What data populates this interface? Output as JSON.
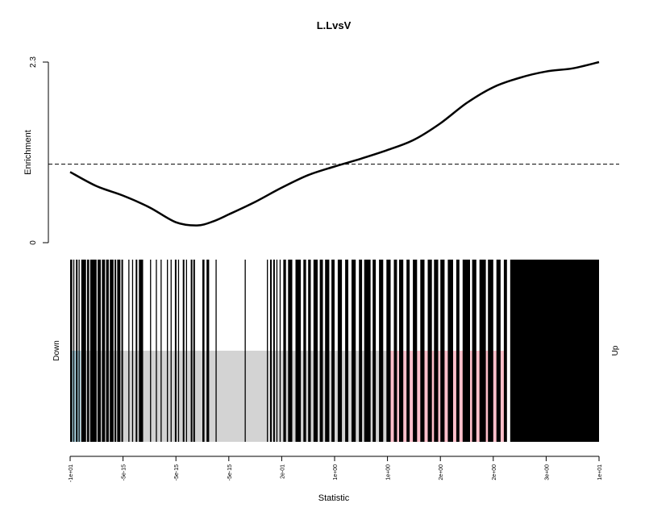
{
  "chart_data": {
    "type": "barcode",
    "title": "L.LvsV",
    "enrichment_panel": {
      "ylabel": "Enrichment",
      "ylim": [
        0,
        2.3
      ],
      "y_ticks": [
        "0",
        "2.3"
      ],
      "reference_line": 1.0,
      "curve": {
        "x": [
          0.0,
          0.05,
          0.1,
          0.15,
          0.2,
          0.24,
          0.27,
          0.3,
          0.35,
          0.4,
          0.45,
          0.5,
          0.55,
          0.6,
          0.65,
          0.7,
          0.75,
          0.8,
          0.85,
          0.9,
          0.95,
          1.0
        ],
        "y": [
          0.9,
          0.72,
          0.6,
          0.45,
          0.26,
          0.22,
          0.27,
          0.36,
          0.52,
          0.7,
          0.86,
          0.97,
          1.07,
          1.18,
          1.31,
          1.52,
          1.78,
          1.98,
          2.1,
          2.18,
          2.22,
          2.3
        ]
      }
    },
    "barcode_panel": {
      "xlabel": "Statistic",
      "x_ticks": [
        "-1e+01",
        "-5e-15",
        "-5e-15",
        "-5e-15",
        "2e-01",
        "1e+00",
        "1e+00",
        "2e+00",
        "2e+00",
        "3e+00",
        "1e+01"
      ],
      "down_label": "Down",
      "up_label": "Up",
      "regions": [
        {
          "name": "down",
          "from": 0.0,
          "to": 0.02,
          "color": "#add8e6"
        },
        {
          "name": "middle",
          "from": 0.02,
          "to": 0.6,
          "color": "#d3d3d3"
        },
        {
          "name": "up",
          "from": 0.6,
          "to": 0.825,
          "color": "#ffc0cb"
        }
      ],
      "bar_segments": [
        [
          0.0,
          0.004
        ],
        [
          0.006,
          0.008
        ],
        [
          0.011,
          0.014
        ],
        [
          0.016,
          0.018
        ],
        [
          0.021,
          0.03
        ],
        [
          0.032,
          0.036
        ],
        [
          0.038,
          0.05
        ],
        [
          0.052,
          0.058
        ],
        [
          0.06,
          0.066
        ],
        [
          0.068,
          0.073
        ],
        [
          0.075,
          0.082
        ],
        [
          0.084,
          0.087
        ],
        [
          0.089,
          0.095
        ],
        [
          0.097,
          0.1
        ],
        [
          0.11,
          0.112
        ],
        [
          0.117,
          0.119
        ],
        [
          0.124,
          0.127
        ],
        [
          0.13,
          0.138
        ],
        [
          0.151,
          0.153
        ],
        [
          0.162,
          0.164
        ],
        [
          0.171,
          0.173
        ],
        [
          0.183,
          0.185
        ],
        [
          0.19,
          0.192
        ],
        [
          0.198,
          0.201
        ],
        [
          0.204,
          0.206
        ],
        [
          0.213,
          0.216
        ],
        [
          0.219,
          0.221
        ],
        [
          0.228,
          0.231
        ],
        [
          0.233,
          0.236
        ],
        [
          0.25,
          0.254
        ],
        [
          0.258,
          0.262
        ],
        [
          0.261,
          0.262
        ],
        [
          0.275,
          0.277
        ],
        [
          0.33,
          0.332
        ],
        [
          0.372,
          0.374
        ],
        [
          0.378,
          0.381
        ],
        [
          0.384,
          0.387
        ],
        [
          0.39,
          0.392
        ],
        [
          0.396,
          0.398
        ],
        [
          0.403,
          0.408
        ],
        [
          0.412,
          0.42
        ],
        [
          0.426,
          0.436
        ],
        [
          0.441,
          0.446
        ],
        [
          0.45,
          0.455
        ],
        [
          0.46,
          0.468
        ],
        [
          0.472,
          0.478
        ],
        [
          0.482,
          0.49
        ],
        [
          0.494,
          0.5
        ],
        [
          0.506,
          0.514
        ],
        [
          0.52,
          0.526
        ],
        [
          0.532,
          0.54
        ],
        [
          0.546,
          0.552
        ],
        [
          0.556,
          0.568
        ],
        [
          0.572,
          0.578
        ],
        [
          0.584,
          0.592
        ],
        [
          0.598,
          0.606
        ],
        [
          0.612,
          0.618
        ],
        [
          0.622,
          0.63
        ],
        [
          0.636,
          0.642
        ],
        [
          0.648,
          0.656
        ],
        [
          0.662,
          0.67
        ],
        [
          0.676,
          0.684
        ],
        [
          0.688,
          0.696
        ],
        [
          0.7,
          0.708
        ],
        [
          0.714,
          0.724
        ],
        [
          0.73,
          0.736
        ],
        [
          0.742,
          0.756
        ],
        [
          0.76,
          0.768
        ],
        [
          0.774,
          0.786
        ],
        [
          0.79,
          0.8
        ],
        [
          0.806,
          0.814
        ],
        [
          0.82,
          0.826
        ],
        [
          0.832,
          1.0
        ]
      ]
    }
  }
}
